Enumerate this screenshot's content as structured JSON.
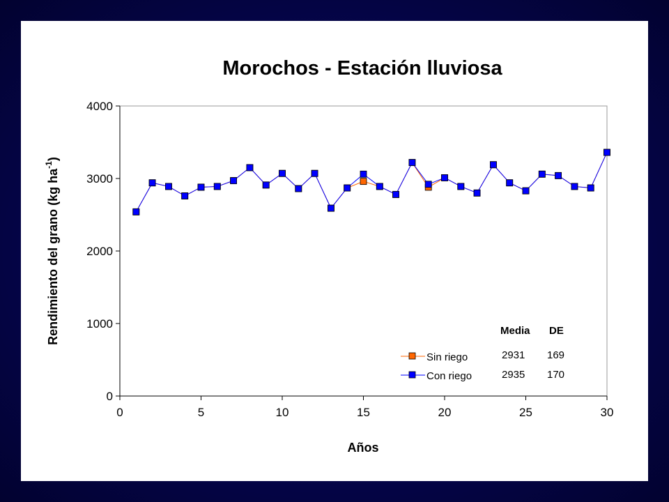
{
  "chart_data": {
    "type": "line",
    "title": "Morochos - Estación lluviosa",
    "xlabel": "Años",
    "ylabel": "Rendimiento del grano (kg ha",
    "ylabel_sup": "-1",
    "ylabel_close": ")",
    "xlim": [
      0,
      30
    ],
    "ylim": [
      0,
      4000
    ],
    "xticks": [
      0,
      5,
      10,
      15,
      20,
      25,
      30
    ],
    "yticks": [
      0,
      1000,
      2000,
      3000,
      4000
    ],
    "grid": false,
    "legend": "bottom-right",
    "x": [
      1,
      2,
      3,
      4,
      5,
      6,
      7,
      8,
      9,
      10,
      11,
      12,
      13,
      14,
      15,
      16,
      17,
      18,
      19,
      20,
      21,
      22,
      23,
      24,
      25,
      26,
      27,
      28,
      29,
      30
    ],
    "series": [
      {
        "name": "Sin riego",
        "color": "#ff6600",
        "values": [
          2540,
          2940,
          2890,
          2760,
          2880,
          2890,
          2970,
          3150,
          2910,
          3070,
          2860,
          3070,
          2590,
          2870,
          2960,
          2890,
          2780,
          3220,
          2880,
          3010,
          2890,
          2800,
          3190,
          2940,
          2830,
          3060,
          3040,
          2890,
          2870,
          3360
        ]
      },
      {
        "name": "Con riego",
        "color": "#0000ff",
        "values": [
          2540,
          2940,
          2890,
          2760,
          2880,
          2890,
          2970,
          3150,
          2910,
          3070,
          2860,
          3070,
          2590,
          2870,
          3060,
          2890,
          2780,
          3220,
          2920,
          3010,
          2890,
          2800,
          3190,
          2940,
          2830,
          3060,
          3040,
          2890,
          2870,
          3360
        ]
      }
    ],
    "stats_table": {
      "headers": [
        "Media",
        "DE"
      ],
      "rows": [
        {
          "label": "Sin riego",
          "media": "2931",
          "de": "169"
        },
        {
          "label": "Con riego",
          "media": "2935",
          "de": "170"
        }
      ]
    }
  }
}
